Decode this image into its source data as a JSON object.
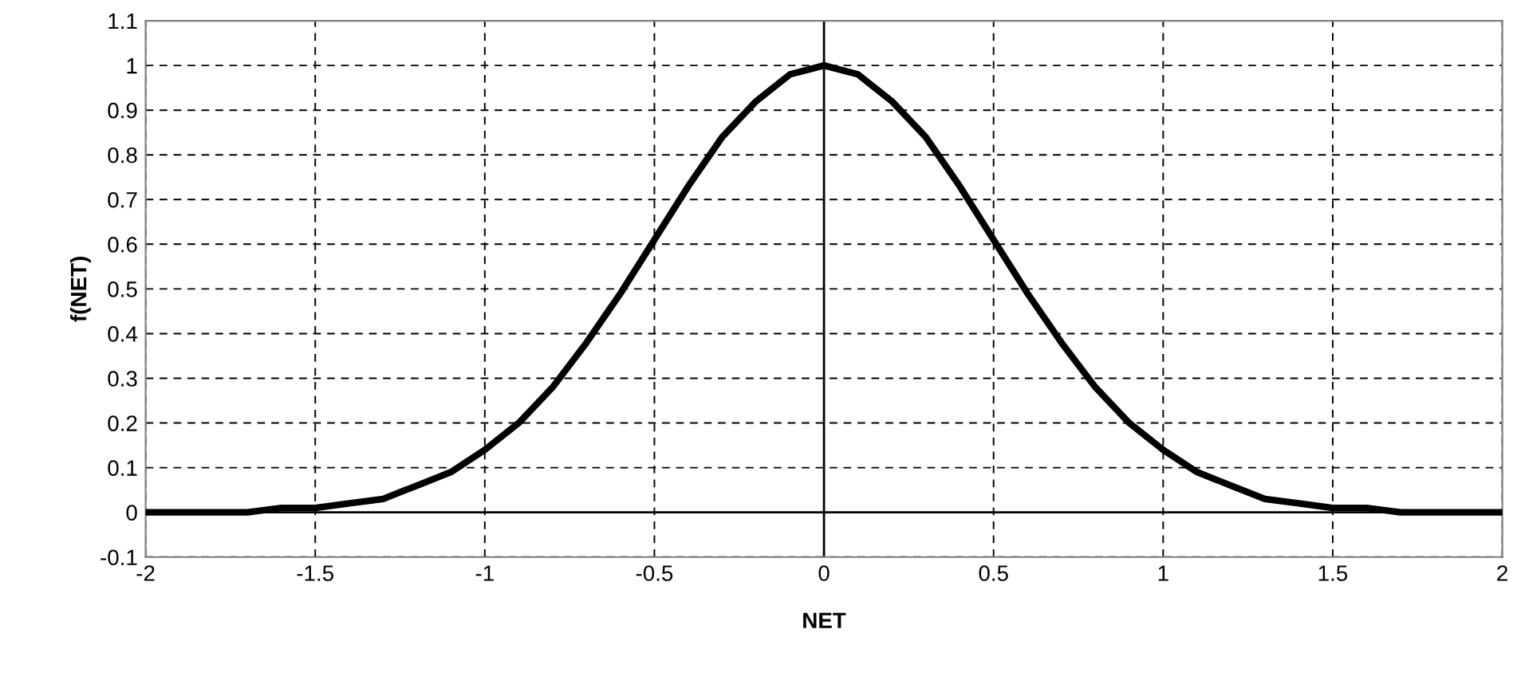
{
  "chart_data": {
    "type": "line",
    "xlabel": "NET",
    "ylabel": "f(NET)",
    "series": [
      {
        "color": "#000000",
        "x": [
          -2,
          -1.9,
          -1.8,
          -1.7,
          -1.6,
          -1.5,
          -1.4,
          -1.3,
          -1.2,
          -1.1,
          -1,
          -0.9,
          -0.8,
          -0.7,
          -0.6,
          -0.5,
          -0.4,
          -0.3,
          -0.2,
          -0.1,
          0,
          0.1,
          0.2,
          0.3,
          0.4,
          0.5,
          0.6,
          0.7,
          0.8,
          0.9,
          1,
          1.1,
          1.2,
          1.3,
          1.4,
          1.5,
          1.6,
          1.7,
          1.8,
          1.9,
          2
        ],
        "values": [
          0,
          0,
          0,
          0,
          0.01,
          0.01,
          0.02,
          0.03,
          0.06,
          0.09,
          0.14,
          0.2,
          0.28,
          0.38,
          0.49,
          0.61,
          0.73,
          0.84,
          0.92,
          0.98,
          1,
          0.98,
          0.92,
          0.84,
          0.73,
          0.61,
          0.49,
          0.38,
          0.28,
          0.2,
          0.14,
          0.09,
          0.06,
          0.03,
          0.02,
          0.01,
          0.01,
          0,
          0,
          0,
          0
        ]
      }
    ],
    "xlim": [
      -2,
      2
    ],
    "xticks": [
      -2,
      -1.5,
      -1,
      -0.5,
      0,
      0.5,
      1,
      1.5,
      2
    ],
    "ylim": [
      -0.1,
      1.1
    ],
    "yticks": [
      -0.1,
      0,
      0.1,
      0.2,
      0.3,
      0.4,
      0.5,
      0.6,
      0.7,
      0.8,
      0.9,
      1,
      1.1
    ],
    "grid": true,
    "line_style": "solid",
    "marker": "none"
  }
}
